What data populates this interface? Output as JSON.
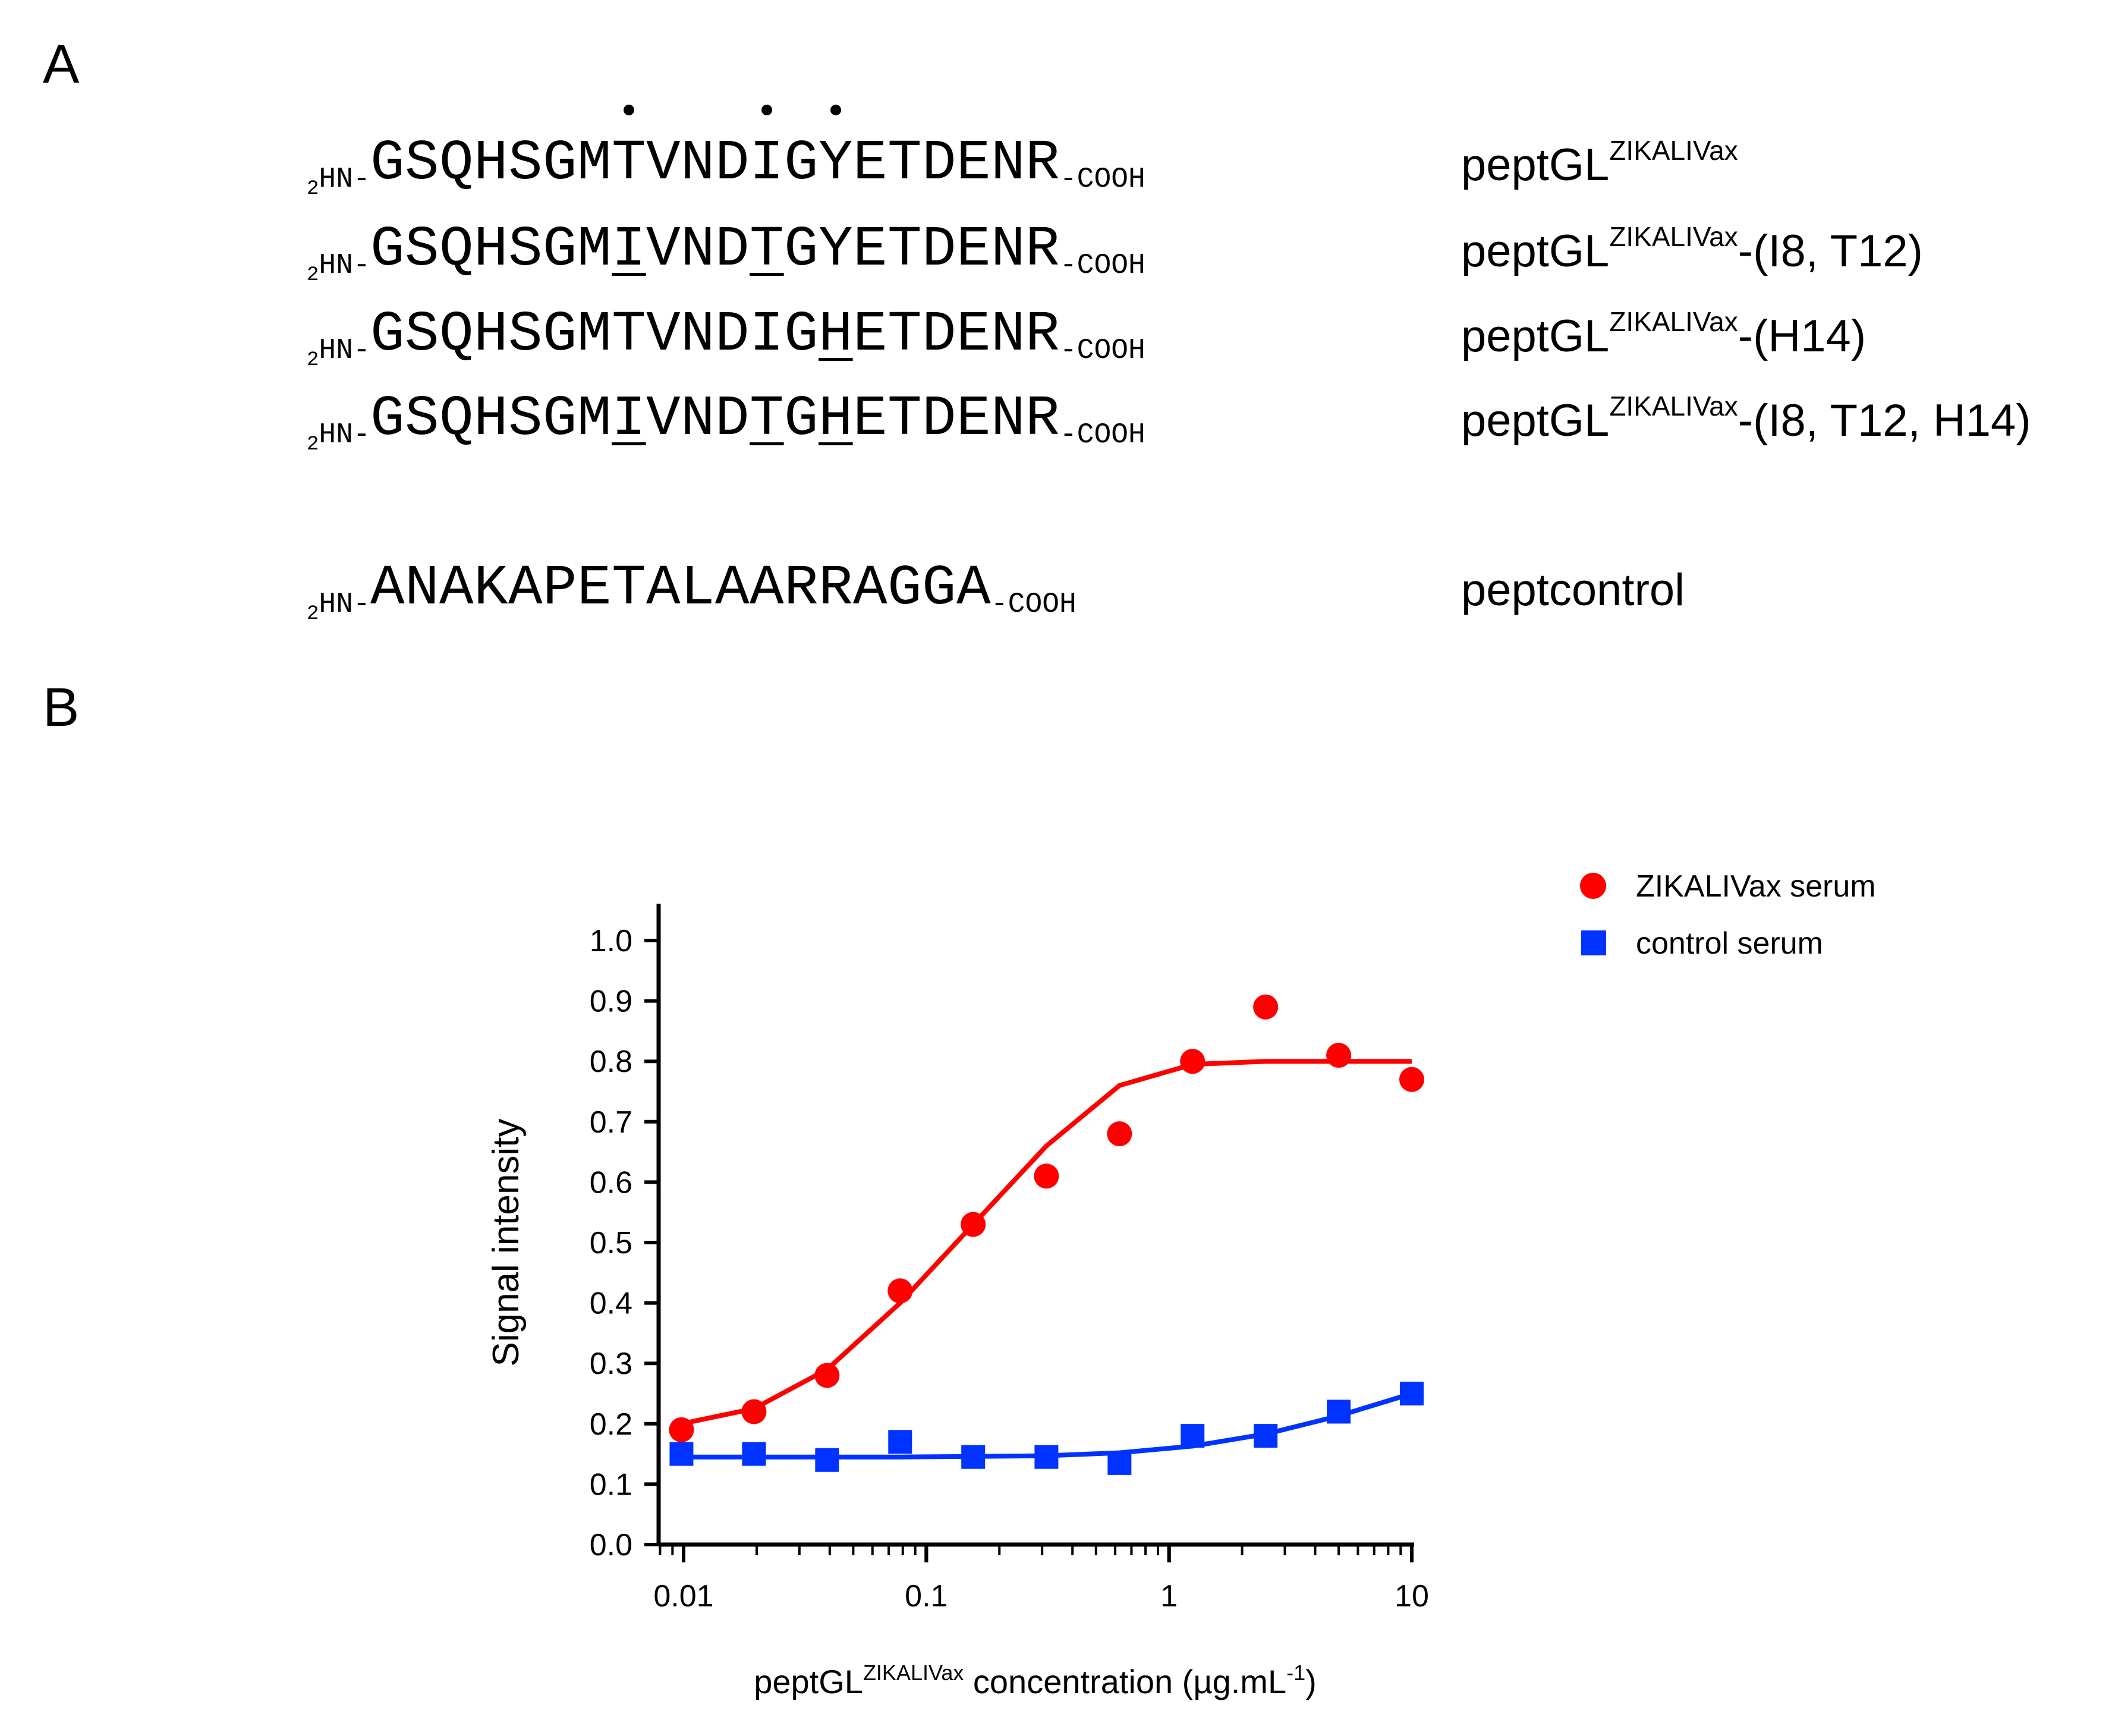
{
  "panels": {
    "a": "A",
    "b": "B"
  },
  "sequences": [
    {
      "nterm_sub": "2",
      "nterm": "HN-",
      "residues": "GSQHSGMTVNDIGYETDENR",
      "mutated": [],
      "dots": [
        7,
        11,
        13
      ],
      "cterm": "-COOH",
      "name_base": "peptGL",
      "name_sup": "ZIKALIVax",
      "name_suffix": ""
    },
    {
      "nterm_sub": "2",
      "nterm": "HN-",
      "residues": "GSQHSGMIVNDTGYETDENR",
      "mutated": [
        7,
        11
      ],
      "dots": [],
      "cterm": "-COOH",
      "name_base": "peptGL",
      "name_sup": "ZIKALIVax",
      "name_suffix": "-(I8, T12)"
    },
    {
      "nterm_sub": "2",
      "nterm": "HN-",
      "residues": "GSQHSGMTVNDIGHETDENR",
      "mutated": [
        13
      ],
      "dots": [],
      "cterm": "-COOH",
      "name_base": "peptGL",
      "name_sup": "ZIKALIVax",
      "name_suffix": "-(H14)"
    },
    {
      "nterm_sub": "2",
      "nterm": "HN-",
      "residues": "GSQHSGMIVNDTGHETDENR",
      "mutated": [
        7,
        11,
        13
      ],
      "dots": [],
      "cterm": "-COOH",
      "name_base": "peptGL",
      "name_sup": "ZIKALIVax",
      "name_suffix": "-(I8, T12, H14)"
    },
    {
      "nterm_sub": "2",
      "nterm": "HN-",
      "residues": "ANAKAPETALAARRAGGA",
      "mutated": [],
      "dots": [],
      "cterm": "-COOH",
      "name_base": "peptcontrol",
      "name_sup": "",
      "name_suffix": ""
    }
  ],
  "chart_data": {
    "type": "scatter",
    "xscale": "log",
    "xlim": [
      0.008,
      10
    ],
    "ylim": [
      0,
      1.0
    ],
    "xticks": [
      "0.01",
      "0.1",
      "1",
      "10"
    ],
    "xtick_values": [
      0.01,
      0.1,
      1,
      10
    ],
    "yticks": [
      "0.0",
      "0.1",
      "0.2",
      "0.3",
      "0.4",
      "0.5",
      "0.6",
      "0.7",
      "0.8",
      "0.9",
      "1.0"
    ],
    "ylabel": "Signal intensity",
    "xlabel_base": "peptGL",
    "xlabel_sup": "ZIKALIVax",
    "xlabel_mid": " concentration (µg.mL",
    "xlabel_sup2": "-1",
    "xlabel_end": ")",
    "legend_position": "top-right",
    "series": [
      {
        "name": "ZIKALIVax serum",
        "color": "#ff0000",
        "marker": "circle",
        "x": [
          0.0098,
          0.0195,
          0.039,
          0.078,
          0.156,
          0.3125,
          0.625,
          1.25,
          2.5,
          5,
          10
        ],
        "y": [
          0.19,
          0.22,
          0.28,
          0.42,
          0.53,
          0.61,
          0.68,
          0.8,
          0.89,
          0.81,
          0.77
        ],
        "fit": [
          [
            0.0098,
            0.2
          ],
          [
            0.0195,
            0.225
          ],
          [
            0.039,
            0.29
          ],
          [
            0.078,
            0.4
          ],
          [
            0.156,
            0.53
          ],
          [
            0.3125,
            0.66
          ],
          [
            0.625,
            0.76
          ],
          [
            1.25,
            0.795
          ],
          [
            2.5,
            0.8
          ],
          [
            5,
            0.8
          ],
          [
            10,
            0.8
          ]
        ]
      },
      {
        "name": "control serum",
        "color": "#0033ff",
        "marker": "square",
        "x": [
          0.0098,
          0.0195,
          0.039,
          0.078,
          0.156,
          0.3125,
          0.625,
          1.25,
          2.5,
          5,
          10
        ],
        "y": [
          0.15,
          0.15,
          0.14,
          0.17,
          0.145,
          0.145,
          0.135,
          0.18,
          0.18,
          0.22,
          0.25
        ],
        "fit": [
          [
            0.0098,
            0.145
          ],
          [
            0.0195,
            0.145
          ],
          [
            0.039,
            0.145
          ],
          [
            0.078,
            0.145
          ],
          [
            0.156,
            0.146
          ],
          [
            0.3125,
            0.147
          ],
          [
            0.625,
            0.152
          ],
          [
            1.25,
            0.163
          ],
          [
            2.5,
            0.183
          ],
          [
            5,
            0.213
          ],
          [
            10,
            0.25
          ]
        ]
      }
    ]
  }
}
